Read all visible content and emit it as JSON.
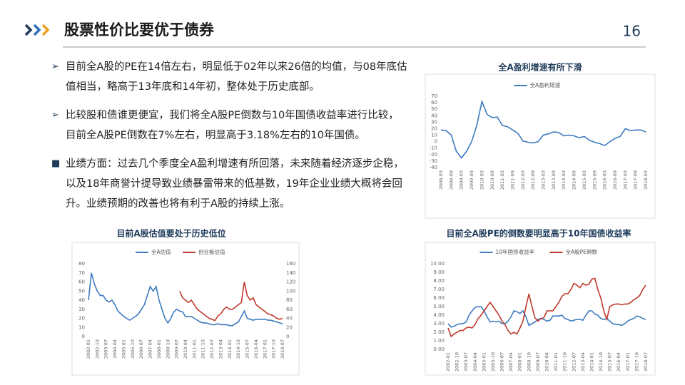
{
  "header": {
    "title": "股票性价比要优于债券",
    "page": "16"
  },
  "bullets": [
    "目前全A股的PE在14倍左右，明显低于02年以来26倍的均值，与08年底估值相当，略高于13年底和14年初，整体处于历史底部。",
    "比较股和债谁更便宜，我们将全A股PE倒数与10年国债收益率进行比较，目前全A股PE倒数在7%左右，明显高于3.18%左右的10年国债。",
    "业绩方面：过去几个季度全A盈利增速有所回落，未来随着经济逐步企稳，以及18年商誉计提导致业绩暴雷带来的低基数，19年企业业绩大概将会回升。业绩预期的改善也将有利于A股的持续上涨。"
  ],
  "chart_data": [
    {
      "type": "line",
      "title": "全A盈利增速有所下滑",
      "categories": [
        "2008-03",
        null,
        "2008-09",
        null,
        "2009-03",
        null,
        "2009-09",
        null,
        "2010-03",
        null,
        "2010-09",
        null,
        "2011-03",
        null,
        "2011-09",
        null,
        "2012-03",
        null,
        "2012-09",
        null,
        "2013-03",
        null,
        "2013-09",
        null,
        "2014-03",
        null,
        "2014-09",
        null,
        "2015-03",
        null,
        "2015-09",
        null,
        "2016-03",
        null,
        "2016-09",
        null,
        "2017-03",
        null,
        "2017-09",
        null,
        "2018-03"
      ],
      "series": [
        {
          "name": "全A盈利增速",
          "color": "#3d7abf",
          "values": [
            18,
            17,
            10,
            -15,
            -25,
            -15,
            0,
            25,
            62,
            42,
            37,
            38,
            25,
            23,
            18,
            13,
            1,
            -1,
            -2,
            0,
            10,
            12,
            15,
            14,
            9,
            10,
            9,
            6,
            8,
            2,
            -1,
            -3,
            -6,
            0,
            5,
            8,
            20,
            17,
            18,
            18,
            15
          ]
        }
      ],
      "ylim": [
        -40,
        70
      ],
      "yticks": [
        -40,
        -30,
        -20,
        -10,
        0,
        10,
        20,
        30,
        40,
        50,
        60,
        70
      ],
      "grid": false
    },
    {
      "type": "line",
      "title": "目前A股估值要处于历史低位",
      "categories": [
        "2002-01",
        null,
        null,
        "2002-10",
        null,
        null,
        "2003-07",
        null,
        null,
        "2004-04",
        null,
        null,
        "2005-01",
        null,
        null,
        "2005-10",
        null,
        null,
        "2006-07",
        null,
        null,
        "2007-04",
        null,
        null,
        "2008-01",
        null,
        null,
        "2008-10",
        null,
        null,
        "2009-07",
        null,
        null,
        "2010-04",
        null,
        null,
        "2011-01",
        null,
        null,
        "2011-10",
        null,
        null,
        "2012-07",
        null,
        null,
        "2013-04",
        null,
        null,
        "2014-01",
        null,
        null,
        "2014-10",
        null,
        null,
        "2015-07",
        null,
        null,
        "2016-04",
        null,
        null,
        "2017-01",
        null,
        null,
        "2017-10",
        null,
        null,
        "2018-07"
      ],
      "series": [
        {
          "name": "全A估值",
          "color": "#3d7abf",
          "values": [
            40,
            70,
            58,
            50,
            45,
            45,
            40,
            38,
            40,
            35,
            28,
            25,
            22,
            20,
            18,
            20,
            22,
            25,
            30,
            35,
            45,
            55,
            50,
            55,
            40,
            30,
            20,
            15,
            20,
            27,
            30,
            28,
            27,
            22,
            22,
            22,
            20,
            18,
            16,
            15,
            15,
            14,
            13,
            13,
            14,
            13,
            13,
            13,
            12,
            12,
            14,
            16,
            22,
            28,
            20,
            19,
            18,
            19,
            19,
            19,
            19,
            18,
            18,
            17,
            16,
            15,
            14
          ]
        },
        {
          "name": "创业板估值",
          "color": "#c0392b",
          "axis": "y2",
          "values": [
            null,
            null,
            null,
            null,
            null,
            null,
            null,
            null,
            null,
            null,
            null,
            null,
            null,
            null,
            null,
            null,
            null,
            null,
            null,
            null,
            null,
            null,
            null,
            null,
            null,
            null,
            null,
            null,
            null,
            null,
            null,
            100,
            85,
            80,
            75,
            80,
            70,
            60,
            55,
            50,
            45,
            40,
            38,
            35,
            45,
            50,
            60,
            65,
            60,
            60,
            65,
            70,
            75,
            120,
            90,
            80,
            85,
            70,
            65,
            60,
            55,
            50,
            48,
            45,
            40,
            38,
            40
          ]
        }
      ],
      "ylim": [
        0,
        80
      ],
      "yticks": [
        0,
        10,
        20,
        30,
        40,
        50,
        60,
        70,
        80
      ],
      "y2lim": [
        0,
        160
      ],
      "y2ticks": [
        0,
        20,
        40,
        60,
        80,
        100,
        120,
        140,
        160
      ],
      "grid": false
    },
    {
      "type": "line",
      "title": "目前全A股PE的倒数要明显高于10年国债收益率",
      "categories": [
        "2002-01",
        null,
        null,
        "2002-10",
        null,
        null,
        "2003-07",
        null,
        null,
        "2004-04",
        null,
        null,
        "2005-01",
        null,
        null,
        "2005-10",
        null,
        null,
        "2006-07",
        null,
        null,
        "2007-04",
        null,
        null,
        "2008-01",
        null,
        null,
        "2008-10",
        null,
        null,
        "2009-07",
        null,
        null,
        "2010-04",
        null,
        null,
        "2011-01",
        null,
        null,
        "2011-10",
        null,
        null,
        "2012-07",
        null,
        null,
        "2013-04",
        null,
        null,
        "2014-01",
        null,
        null,
        "2014-10",
        null,
        null,
        "2015-07",
        null,
        null,
        "2016-04",
        null,
        null,
        "2017-01",
        null,
        null,
        "2017-10",
        null,
        null,
        "2018-07"
      ],
      "series": [
        {
          "name": "10年国债收益率",
          "color": "#3d7abf",
          "values": [
            3.0,
            2.6,
            2.7,
            2.9,
            3.0,
            3.0,
            3.2,
            4.0,
            4.5,
            4.9,
            5.0,
            5.0,
            4.5,
            3.8,
            3.2,
            3.3,
            3.2,
            3.3,
            3.0,
            3.0,
            3.3,
            3.8,
            4.5,
            4.4,
            4.2,
            4.5,
            3.8,
            2.8,
            3.0,
            3.2,
            3.5,
            3.6,
            3.5,
            3.3,
            3.4,
            3.9,
            3.9,
            3.9,
            4.0,
            3.6,
            3.5,
            3.3,
            3.4,
            3.5,
            3.5,
            3.4,
            4.0,
            4.5,
            4.5,
            4.1,
            4.0,
            3.6,
            3.5,
            3.6,
            3.3,
            3.0,
            2.9,
            2.9,
            2.8,
            3.0,
            3.3,
            3.5,
            3.6,
            3.9,
            3.8,
            3.6,
            3.5
          ]
        },
        {
          "name": "全A股PE倒数",
          "color": "#c0392b",
          "values": [
            2.5,
            1.5,
            1.8,
            2.0,
            2.2,
            2.2,
            2.5,
            2.6,
            2.5,
            2.9,
            3.6,
            4.0,
            4.5,
            5.0,
            5.5,
            5.0,
            4.5,
            4.0,
            3.3,
            2.9,
            2.2,
            1.8,
            2.0,
            1.8,
            2.5,
            3.3,
            5.0,
            6.5,
            5.0,
            3.7,
            3.3,
            3.6,
            3.7,
            4.5,
            4.5,
            4.5,
            5.0,
            5.5,
            6.2,
            6.5,
            6.5,
            7.0,
            7.7,
            7.5,
            7.2,
            7.7,
            7.5,
            7.6,
            8.2,
            8.3,
            7.0,
            6.0,
            4.5,
            3.5,
            5.0,
            5.2,
            5.3,
            5.3,
            5.2,
            5.3,
            5.3,
            5.5,
            5.8,
            6.0,
            6.3,
            7.0,
            7.5
          ]
        }
      ],
      "ylim": [
        0,
        10
      ],
      "yticks": [
        {
          "value": 0,
          "label": "0.00"
        },
        {
          "value": 1,
          "label": "1.00"
        },
        {
          "value": 2,
          "label": "2.00"
        },
        {
          "value": 3,
          "label": "3.00"
        },
        {
          "value": 4,
          "label": "4.00"
        },
        {
          "value": 5,
          "label": "5.00"
        },
        {
          "value": 6,
          "label": "6.00"
        },
        {
          "value": 7,
          "label": "7.00"
        },
        {
          "value": 8,
          "label": "8.00"
        },
        {
          "value": 9,
          "label": "9.00"
        },
        {
          "value": 10,
          "label": "10.00"
        }
      ],
      "grid": false
    }
  ]
}
